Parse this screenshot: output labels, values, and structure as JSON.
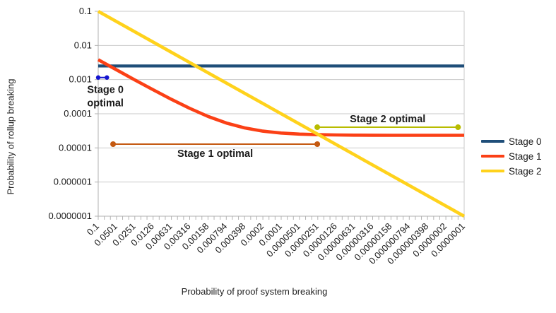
{
  "chart_data": {
    "type": "line",
    "title": "",
    "xlabel": "Probability of proof system breaking",
    "ylabel": "Probability of rollup breaking",
    "x_scale": "log",
    "y_scale": "log",
    "x_range": [
      0.1,
      1e-07
    ],
    "y_range": [
      0.1,
      1e-07
    ],
    "grid": "horizontal",
    "legend_position": "right",
    "x_tick_labels": [
      "0.1",
      "0.0501",
      "0.0251",
      "0.0126",
      "0.00631",
      "0.00316",
      "0.00158",
      "0.000794",
      "0.000398",
      "0.0002",
      "0.0001",
      "0.0000501",
      "0.0000251",
      "0.0000126",
      "0.00000631",
      "0.00000316",
      "0.00000158",
      "0.000000794",
      "0.000000398",
      "0.0000002",
      "0.0000001"
    ],
    "y_tick_labels": [
      "0.1",
      "0.01",
      "0.001",
      "0.0001",
      "0.00001",
      "0.000001",
      "0.0000001"
    ],
    "series": [
      {
        "name": "Stage 0",
        "color": "#1f4e79",
        "width": 4.2,
        "points": [
          [
            0.1,
            0.0025
          ],
          [
            1e-07,
            0.0025
          ]
        ]
      },
      {
        "name": "Stage 1",
        "color": "#fb4016",
        "width": 4.6,
        "points": [
          [
            0.1,
            0.003834
          ],
          [
            0.0501,
            0.001932
          ],
          [
            0.0251,
            0.00098
          ],
          [
            0.0126,
            0.000504
          ],
          [
            0.00631,
            0.000264
          ],
          [
            0.00316,
            0.000144
          ],
          [
            0.00158,
            8.36e-05
          ],
          [
            0.000794,
            5.37e-05
          ],
          [
            0.000398,
            3.86e-05
          ],
          [
            0.0002,
            3.1e-05
          ],
          [
            0.0001,
            2.72e-05
          ],
          [
            5.01e-05,
            2.53e-05
          ],
          [
            2.51e-05,
            2.44e-05
          ],
          [
            1.26e-05,
            2.39e-05
          ],
          [
            6.31e-06,
            2.36e-05
          ],
          [
            3.16e-06,
            2.35e-05
          ],
          [
            1.58e-06,
            2.34e-05
          ],
          [
            3.98e-07,
            2.34e-05
          ],
          [
            1e-07,
            2.34e-05
          ]
        ]
      },
      {
        "name": "Stage 2",
        "color": "#ffd21c",
        "width": 4.6,
        "points": [
          [
            0.1,
            0.1
          ],
          [
            1e-07,
            1e-07
          ]
        ]
      }
    ],
    "annotations": [
      {
        "id": "stage0-optimal",
        "label": "Stage 0 optimal",
        "label_lines": [
          "Stage 0",
          "optimal"
        ],
        "line_color": "#1313cf",
        "text_color": "#1313cf",
        "x1": 0.1,
        "x2": 0.072,
        "y": 0.00115,
        "label_pos": "below"
      },
      {
        "id": "stage1-optimal",
        "label": "Stage 1 optimal",
        "line_color": "#c45911",
        "text_color": "#c45911",
        "x1": 0.057,
        "x2": 2.56e-05,
        "y": 1.29e-05,
        "label_pos": "below"
      },
      {
        "id": "stage2-optimal",
        "label": "Stage 2 optimal",
        "line_color": "#b8bc00",
        "text_color": "#6f7300",
        "x1": 2.56e-05,
        "x2": 1.26e-07,
        "y": 4.04e-05,
        "label_pos": "above"
      }
    ]
  }
}
